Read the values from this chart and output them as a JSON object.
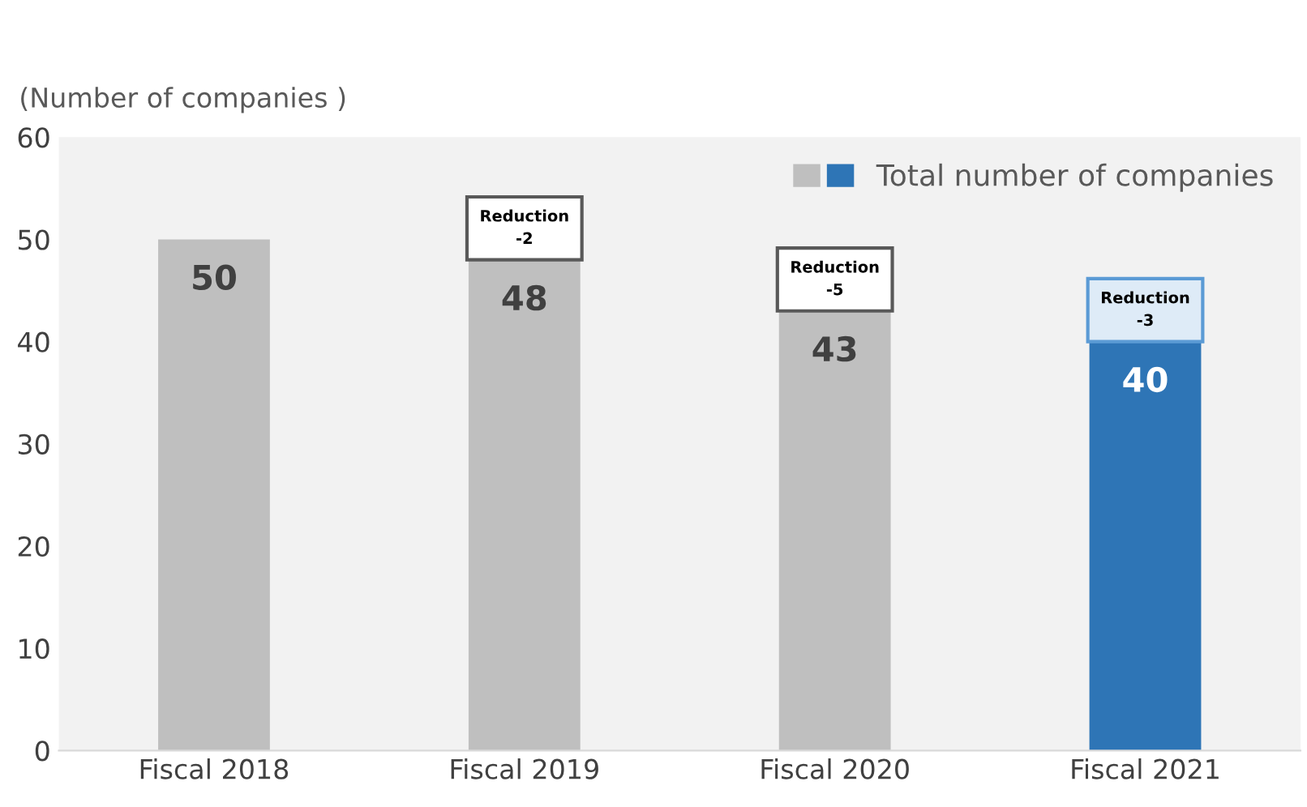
{
  "chart_data": {
    "type": "bar",
    "ylabel": "(Number of companies )",
    "categories": [
      "Fiscal 2018",
      "Fiscal 2019",
      "Fiscal 2020",
      "Fiscal 2021"
    ],
    "series": [
      {
        "name": "Total number of companies",
        "colors": [
          "#bfbfbf",
          "#bfbfbf",
          "#bfbfbf",
          "#2e75b6"
        ],
        "values": [
          50,
          48,
          43,
          40
        ]
      }
    ],
    "data_labels": true,
    "ylim": [
      0,
      60
    ],
    "yticks": [
      0,
      10,
      20,
      30,
      40,
      50,
      60
    ],
    "grid": false,
    "legend": "top right",
    "annotations": [
      {
        "text": "Reduction\n-2",
        "x": "Fiscal 2019",
        "y": 48
      },
      {
        "text": "Reduction\n-5",
        "x": "Fiscal 2020",
        "y": 43
      },
      {
        "text": "Reduction\n-3",
        "x": "Fiscal 2021",
        "y": 40
      }
    ]
  }
}
